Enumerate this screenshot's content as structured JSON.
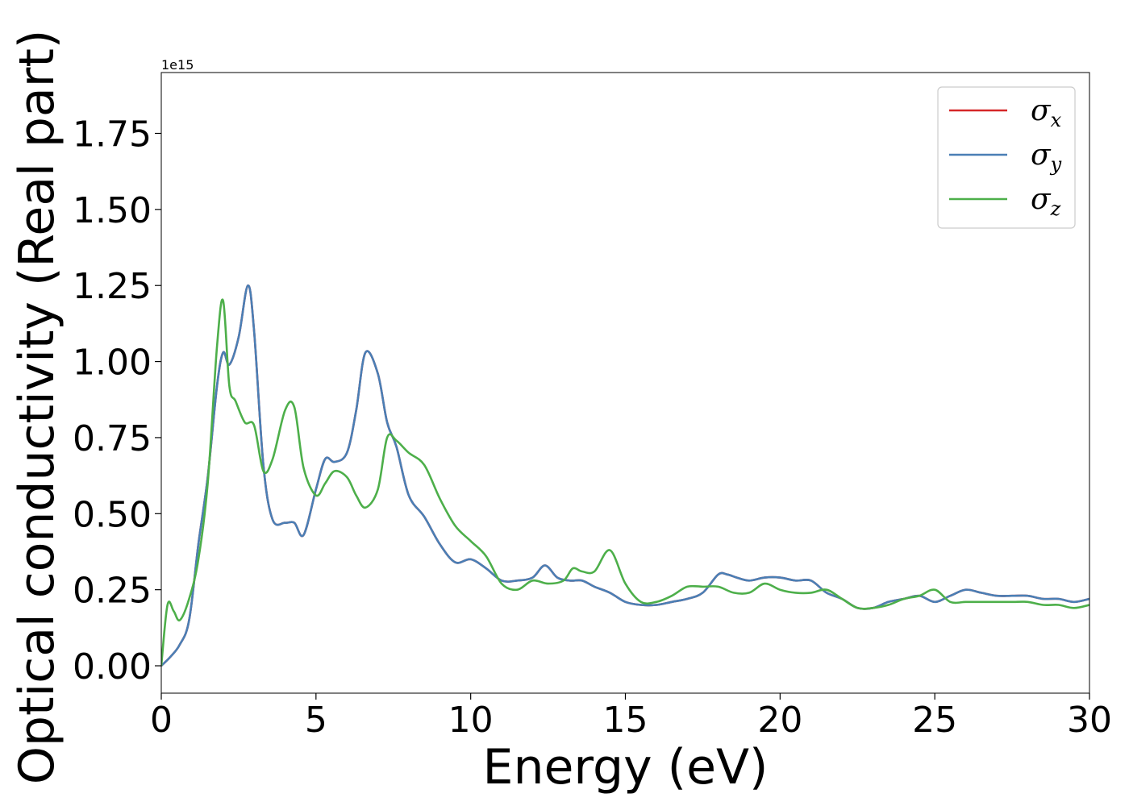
{
  "chart_data": {
    "type": "line",
    "title": "",
    "xlabel": "Energy (eV)",
    "ylabel": "Optical conductivity (Real part)",
    "y_offset_label": "1e15",
    "xlim": [
      0,
      30
    ],
    "ylim": [
      -0.09,
      1.95
    ],
    "x_ticks": [
      0,
      5,
      10,
      15,
      20,
      25,
      30
    ],
    "x_tick_labels": [
      "0",
      "5",
      "10",
      "15",
      "20",
      "25",
      "30"
    ],
    "y_ticks": [
      0,
      0.25,
      0.5,
      0.75,
      1.0,
      1.25,
      1.5,
      1.75
    ],
    "y_tick_labels": [
      "0.00",
      "0.25",
      "0.50",
      "0.75",
      "1.00",
      "1.25",
      "1.50",
      "1.75"
    ],
    "grid": false,
    "legend_position": "top-right",
    "series": [
      {
        "name": "σx",
        "legend_symbol": "σ",
        "legend_sub": "x",
        "color": "#d62728",
        "x": [
          0,
          0.3,
          0.6,
          0.9,
          1.2,
          1.5,
          1.8,
          2.0,
          2.2,
          2.5,
          2.8,
          3.0,
          3.3,
          3.6,
          4.0,
          4.3,
          4.6,
          5.0,
          5.3,
          5.6,
          6.0,
          6.3,
          6.6,
          7.0,
          7.3,
          7.6,
          8.0,
          8.5,
          9.0,
          9.5,
          10.0,
          10.5,
          11.0,
          11.5,
          12.0,
          12.4,
          12.8,
          13.2,
          13.6,
          14.0,
          14.5,
          15.0,
          15.5,
          16.0,
          16.5,
          17.0,
          17.5,
          18.0,
          18.3,
          18.6,
          19.0,
          19.5,
          20.0,
          20.5,
          21.0,
          21.5,
          22.0,
          22.5,
          23.0,
          23.5,
          24.0,
          24.5,
          25.0,
          25.5,
          26.0,
          26.5,
          27.0,
          27.5,
          28.0,
          28.5,
          29.0,
          29.5,
          30.0
        ],
        "y": [
          0,
          0.03,
          0.07,
          0.15,
          0.4,
          0.62,
          0.92,
          1.03,
          0.99,
          1.08,
          1.25,
          1.1,
          0.66,
          0.48,
          0.47,
          0.47,
          0.43,
          0.58,
          0.68,
          0.67,
          0.7,
          0.84,
          1.03,
          0.96,
          0.8,
          0.72,
          0.56,
          0.49,
          0.4,
          0.34,
          0.35,
          0.32,
          0.28,
          0.28,
          0.29,
          0.33,
          0.29,
          0.28,
          0.28,
          0.26,
          0.24,
          0.21,
          0.2,
          0.2,
          0.21,
          0.22,
          0.24,
          0.3,
          0.3,
          0.29,
          0.28,
          0.29,
          0.29,
          0.28,
          0.28,
          0.24,
          0.22,
          0.19,
          0.19,
          0.21,
          0.22,
          0.23,
          0.21,
          0.23,
          0.25,
          0.24,
          0.23,
          0.23,
          0.23,
          0.22,
          0.22,
          0.21,
          0.22
        ]
      },
      {
        "name": "σy",
        "legend_symbol": "σ",
        "legend_sub": "y",
        "color": "#4a7fb5",
        "x": [
          0,
          0.3,
          0.6,
          0.9,
          1.2,
          1.5,
          1.8,
          2.0,
          2.2,
          2.5,
          2.8,
          3.0,
          3.3,
          3.6,
          4.0,
          4.3,
          4.6,
          5.0,
          5.3,
          5.6,
          6.0,
          6.3,
          6.6,
          7.0,
          7.3,
          7.6,
          8.0,
          8.5,
          9.0,
          9.5,
          10.0,
          10.5,
          11.0,
          11.5,
          12.0,
          12.4,
          12.8,
          13.2,
          13.6,
          14.0,
          14.5,
          15.0,
          15.5,
          16.0,
          16.5,
          17.0,
          17.5,
          18.0,
          18.3,
          18.6,
          19.0,
          19.5,
          20.0,
          20.5,
          21.0,
          21.5,
          22.0,
          22.5,
          23.0,
          23.5,
          24.0,
          24.5,
          25.0,
          25.5,
          26.0,
          26.5,
          27.0,
          27.5,
          28.0,
          28.5,
          29.0,
          29.5,
          30.0
        ],
        "y": [
          0,
          0.03,
          0.07,
          0.15,
          0.4,
          0.62,
          0.92,
          1.03,
          0.99,
          1.08,
          1.25,
          1.1,
          0.66,
          0.48,
          0.47,
          0.47,
          0.43,
          0.58,
          0.68,
          0.67,
          0.7,
          0.84,
          1.03,
          0.96,
          0.8,
          0.72,
          0.56,
          0.49,
          0.4,
          0.34,
          0.35,
          0.32,
          0.28,
          0.28,
          0.29,
          0.33,
          0.29,
          0.28,
          0.28,
          0.26,
          0.24,
          0.21,
          0.2,
          0.2,
          0.21,
          0.22,
          0.24,
          0.3,
          0.3,
          0.29,
          0.28,
          0.29,
          0.29,
          0.28,
          0.28,
          0.24,
          0.22,
          0.19,
          0.19,
          0.21,
          0.22,
          0.23,
          0.21,
          0.23,
          0.25,
          0.24,
          0.23,
          0.23,
          0.23,
          0.22,
          0.22,
          0.21,
          0.22
        ]
      },
      {
        "name": "σz",
        "legend_symbol": "σ",
        "legend_sub": "z",
        "color": "#4daf4a",
        "x": [
          0,
          0.2,
          0.4,
          0.6,
          0.9,
          1.2,
          1.5,
          1.8,
          2.0,
          2.2,
          2.4,
          2.7,
          3.0,
          3.3,
          3.6,
          4.0,
          4.3,
          4.6,
          5.0,
          5.3,
          5.6,
          6.0,
          6.3,
          6.6,
          7.0,
          7.3,
          7.6,
          8.0,
          8.5,
          9.0,
          9.5,
          10.0,
          10.5,
          11.0,
          11.5,
          12.0,
          12.5,
          13.0,
          13.3,
          13.6,
          14.0,
          14.5,
          15.0,
          15.5,
          16.0,
          16.5,
          17.0,
          17.5,
          18.0,
          18.5,
          19.0,
          19.5,
          20.0,
          20.5,
          21.0,
          21.5,
          22.0,
          22.5,
          23.0,
          23.5,
          24.0,
          24.5,
          25.0,
          25.5,
          26.0,
          26.5,
          27.0,
          27.5,
          28.0,
          28.5,
          29.0,
          29.5,
          30.0
        ],
        "y": [
          0,
          0.2,
          0.18,
          0.15,
          0.22,
          0.35,
          0.6,
          1.05,
          1.2,
          0.92,
          0.87,
          0.8,
          0.79,
          0.64,
          0.68,
          0.84,
          0.85,
          0.65,
          0.56,
          0.6,
          0.64,
          0.62,
          0.56,
          0.52,
          0.58,
          0.75,
          0.74,
          0.7,
          0.66,
          0.55,
          0.46,
          0.41,
          0.36,
          0.27,
          0.25,
          0.28,
          0.27,
          0.28,
          0.32,
          0.31,
          0.31,
          0.38,
          0.27,
          0.21,
          0.21,
          0.23,
          0.26,
          0.26,
          0.26,
          0.24,
          0.24,
          0.27,
          0.25,
          0.24,
          0.24,
          0.25,
          0.22,
          0.19,
          0.19,
          0.2,
          0.22,
          0.23,
          0.25,
          0.21,
          0.21,
          0.21,
          0.21,
          0.21,
          0.21,
          0.2,
          0.2,
          0.19,
          0.2
        ]
      }
    ]
  }
}
